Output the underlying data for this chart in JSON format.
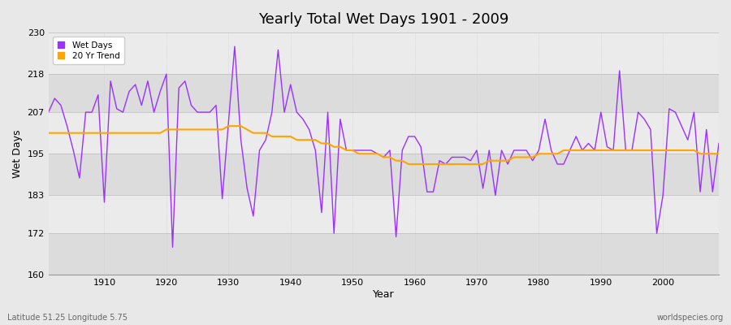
{
  "title": "Yearly Total Wet Days 1901 - 2009",
  "xlabel": "Year",
  "ylabel": "Wet Days",
  "subtitle_left": "Latitude 51.25 Longitude 5.75",
  "subtitle_right": "worldspecies.org",
  "ylim": [
    160,
    230
  ],
  "yticks": [
    160,
    172,
    183,
    195,
    207,
    218,
    230
  ],
  "line_color": "#9B30FF",
  "trend_color": "#FFA500",
  "background_color": "#E8E8E8",
  "plot_bg_color": "#E8E8E8",
  "stripe_color": "#D8D8D8",
  "grid_color": "#FFFFFF",
  "wet_days": {
    "1901": 207,
    "1902": 211,
    "1903": 209,
    "1904": 203,
    "1905": 196,
    "1906": 188,
    "1907": 207,
    "1908": 207,
    "1909": 212,
    "1910": 181,
    "1911": 216,
    "1912": 208,
    "1913": 207,
    "1914": 213,
    "1915": 215,
    "1916": 209,
    "1917": 216,
    "1918": 207,
    "1919": 213,
    "1920": 218,
    "1921": 168,
    "1922": 214,
    "1923": 216,
    "1924": 209,
    "1925": 207,
    "1926": 207,
    "1927": 207,
    "1928": 209,
    "1929": 182,
    "1930": 204,
    "1931": 226,
    "1932": 199,
    "1933": 185,
    "1934": 177,
    "1935": 196,
    "1936": 199,
    "1937": 207,
    "1938": 225,
    "1939": 207,
    "1940": 215,
    "1941": 207,
    "1942": 205,
    "1943": 202,
    "1944": 196,
    "1945": 178,
    "1946": 207,
    "1947": 172,
    "1948": 205,
    "1949": 196,
    "1950": 196,
    "1951": 196,
    "1952": 196,
    "1953": 196,
    "1954": 195,
    "1955": 194,
    "1956": 196,
    "1957": 171,
    "1958": 196,
    "1959": 200,
    "1960": 200,
    "1961": 197,
    "1962": 184,
    "1963": 184,
    "1964": 193,
    "1965": 192,
    "1966": 194,
    "1967": 194,
    "1968": 194,
    "1969": 193,
    "1970": 196,
    "1971": 185,
    "1972": 196,
    "1973": 183,
    "1974": 196,
    "1975": 192,
    "1976": 196,
    "1977": 196,
    "1978": 196,
    "1979": 193,
    "1980": 196,
    "1981": 205,
    "1982": 196,
    "1983": 192,
    "1984": 192,
    "1985": 196,
    "1986": 200,
    "1987": 196,
    "1988": 198,
    "1989": 196,
    "1990": 207,
    "1991": 197,
    "1992": 196,
    "1993": 219,
    "1994": 196,
    "1995": 196,
    "1996": 207,
    "1997": 205,
    "1998": 202,
    "1999": 172,
    "2000": 183,
    "2001": 208,
    "2002": 207,
    "2003": 203,
    "2004": 199,
    "2005": 207,
    "2006": 184,
    "2007": 202,
    "2008": 184,
    "2009": 198
  },
  "trend_days": {
    "1901": 201,
    "1902": 201,
    "1903": 201,
    "1904": 201,
    "1905": 201,
    "1906": 201,
    "1907": 201,
    "1908": 201,
    "1909": 201,
    "1910": 201,
    "1911": 201,
    "1912": 201,
    "1913": 201,
    "1914": 201,
    "1915": 201,
    "1916": 201,
    "1917": 201,
    "1918": 201,
    "1919": 201,
    "1920": 202,
    "1921": 202,
    "1922": 202,
    "1923": 202,
    "1924": 202,
    "1925": 202,
    "1926": 202,
    "1927": 202,
    "1928": 202,
    "1929": 202,
    "1930": 203,
    "1931": 203,
    "1932": 203,
    "1933": 202,
    "1934": 201,
    "1935": 201,
    "1936": 201,
    "1937": 200,
    "1938": 200,
    "1939": 200,
    "1940": 200,
    "1941": 199,
    "1942": 199,
    "1943": 199,
    "1944": 199,
    "1945": 198,
    "1946": 198,
    "1947": 197,
    "1948": 197,
    "1949": 196,
    "1950": 196,
    "1951": 195,
    "1952": 195,
    "1953": 195,
    "1954": 195,
    "1955": 194,
    "1956": 194,
    "1957": 193,
    "1958": 193,
    "1959": 192,
    "1960": 192,
    "1961": 192,
    "1962": 192,
    "1963": 192,
    "1964": 192,
    "1965": 192,
    "1966": 192,
    "1967": 192,
    "1968": 192,
    "1969": 192,
    "1970": 192,
    "1971": 192,
    "1972": 193,
    "1973": 193,
    "1974": 193,
    "1975": 193,
    "1976": 194,
    "1977": 194,
    "1978": 194,
    "1979": 194,
    "1980": 195,
    "1981": 195,
    "1982": 195,
    "1983": 195,
    "1984": 196,
    "1985": 196,
    "1986": 196,
    "1987": 196,
    "1988": 196,
    "1989": 196,
    "1990": 196,
    "1991": 196,
    "1992": 196,
    "1993": 196,
    "1994": 196,
    "1995": 196,
    "1996": 196,
    "1997": 196,
    "1998": 196,
    "1999": 196,
    "2000": 196,
    "2001": 196,
    "2002": 196,
    "2003": 196,
    "2004": 196,
    "2005": 196,
    "2006": 195,
    "2007": 195,
    "2008": 195,
    "2009": 195
  }
}
